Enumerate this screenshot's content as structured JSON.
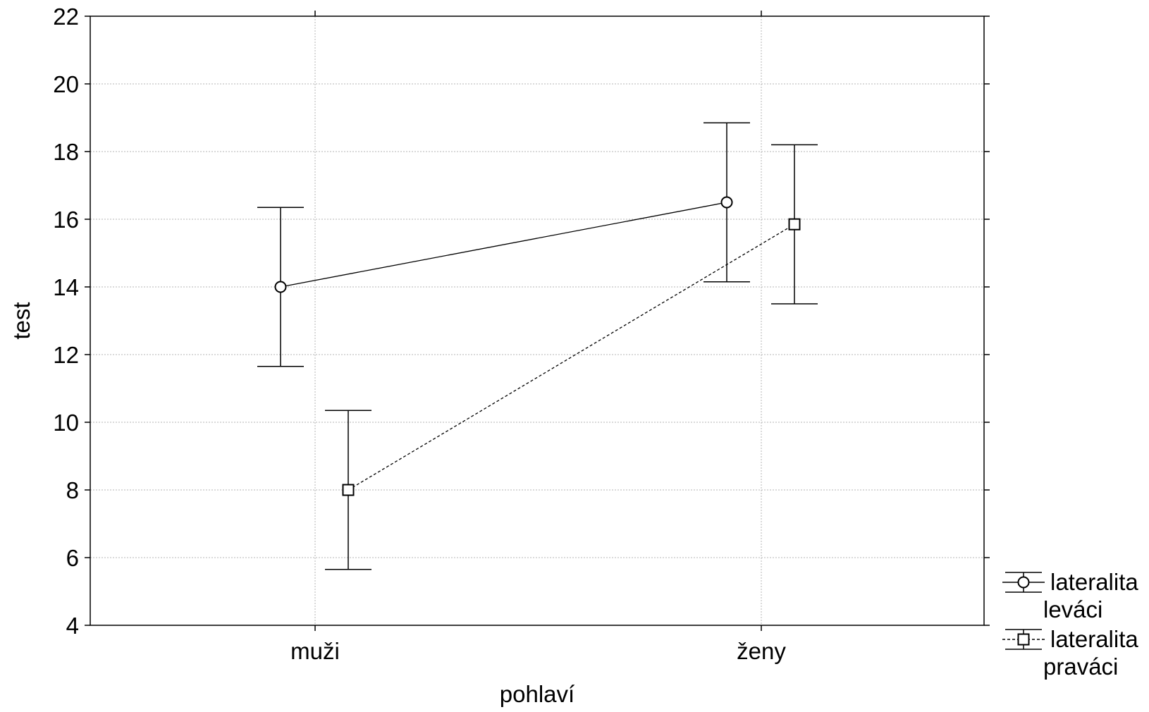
{
  "chart_data": {
    "type": "line",
    "xlabel": "pohlaví",
    "ylabel": "test",
    "categories": [
      "muži",
      "ženy"
    ],
    "ylim": [
      4,
      22
    ],
    "yticks": [
      4,
      6,
      8,
      10,
      12,
      14,
      16,
      18,
      20,
      22
    ],
    "grid": true,
    "legend_position": "bottom-right outside",
    "series": [
      {
        "name_line1": "lateralita",
        "name_line2": "leváci",
        "marker": "circle",
        "line_style": "solid",
        "values": [
          14.0,
          16.5
        ],
        "error_low": [
          11.65,
          14.15
        ],
        "error_high": [
          16.35,
          18.85
        ]
      },
      {
        "name_line1": "lateralita",
        "name_line2": "praváci",
        "marker": "square",
        "line_style": "dashed",
        "values": [
          8.0,
          15.85
        ],
        "error_low": [
          5.65,
          13.5
        ],
        "error_high": [
          10.35,
          18.2
        ]
      }
    ],
    "colors": {
      "line": "#000000",
      "grid": "#b4b4b4",
      "background": "#ffffff"
    }
  }
}
